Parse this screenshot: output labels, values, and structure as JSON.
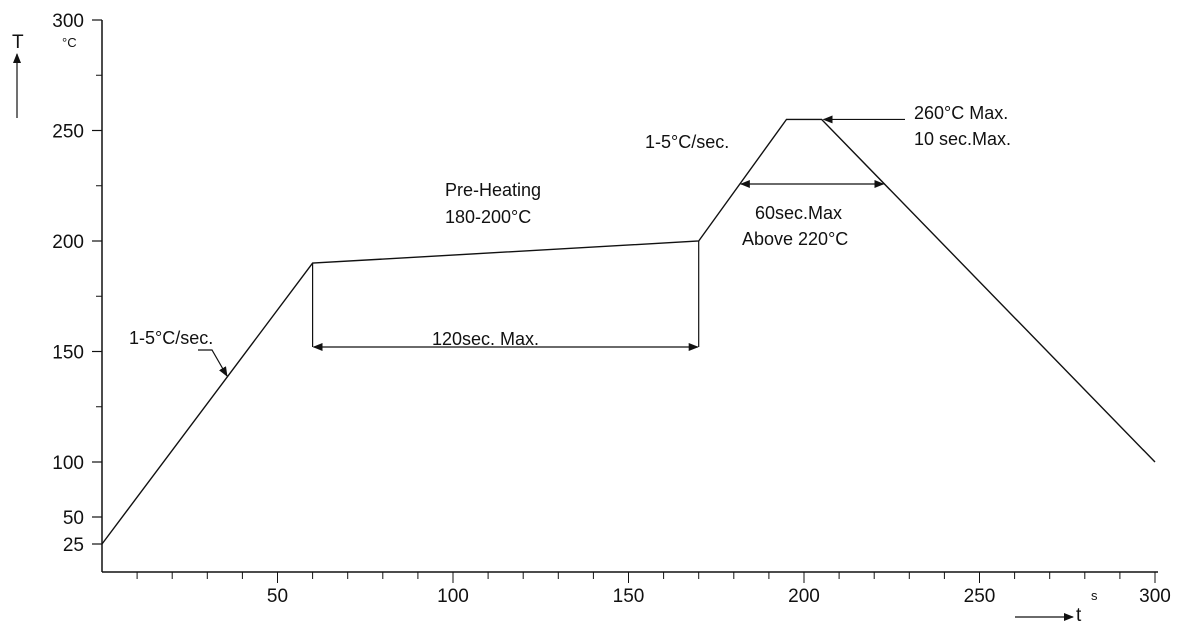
{
  "chart_data": {
    "type": "line",
    "x_axis": {
      "letter": "t",
      "unit": "s",
      "range": [
        0,
        300
      ],
      "tick_labels": [
        "50",
        "100",
        "150",
        "200",
        "250",
        "300"
      ],
      "tick_values": [
        50,
        100,
        150,
        200,
        250,
        300
      ],
      "minor_step": 10
    },
    "y_axis": {
      "letter": "T",
      "unit": "°C",
      "range": [
        15,
        300
      ],
      "tick_labels": [
        "25",
        "50",
        "100",
        "150",
        "200",
        "250",
        "300"
      ],
      "tick_values": [
        25,
        50,
        100,
        150,
        200,
        250,
        300
      ],
      "minor_ticks": [
        125,
        175,
        225,
        275
      ]
    },
    "series": [
      {
        "x": [
          0,
          60,
          170,
          195,
          205,
          300
        ],
        "y": [
          25,
          190,
          200,
          255,
          255,
          100
        ]
      }
    ],
    "annotations": {
      "ramp_up_rate": "1-5°C/sec.",
      "reflow_rate": "1-5°C/sec.",
      "preheat_title": "Pre-Heating",
      "preheat_range": "180-200°C",
      "preheat_time": "120sec. Max.",
      "above_time": "60sec.Max",
      "above_temp": "Above 220°C",
      "peak_temp": "260°C Max.",
      "peak_time": "10 sec.Max."
    },
    "grid": false
  }
}
